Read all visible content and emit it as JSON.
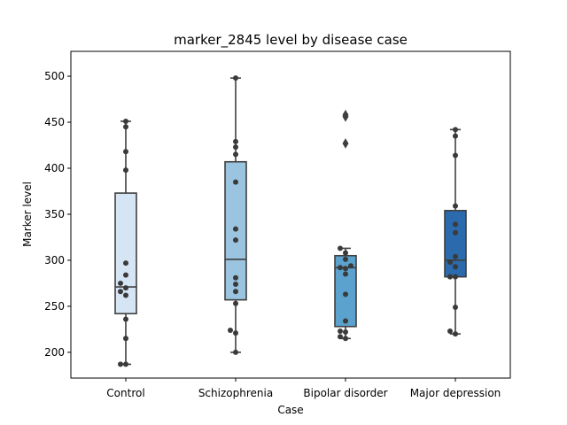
{
  "chart_data": {
    "type": "box",
    "title": "marker_2845 level by disease case",
    "xlabel": "Case",
    "ylabel": "Marker level",
    "ylim": [
      172,
      527
    ],
    "yticks": [
      200,
      250,
      300,
      350,
      400,
      450,
      500
    ],
    "grid": false,
    "categories": [
      "Control",
      "Schizophrenia",
      "Bipolar disorder",
      "Major depression"
    ],
    "colors": [
      "#d6e5f4",
      "#9ac4df",
      "#5ba2cf",
      "#2b6aad"
    ],
    "boxes": [
      {
        "name": "Control",
        "whisker_low": 187,
        "q1": 242,
        "median": 271,
        "q3": 373,
        "whisker_high": 451,
        "outliers": []
      },
      {
        "name": "Schizophrenia",
        "whisker_low": 200,
        "q1": 257,
        "median": 301,
        "q3": 407,
        "whisker_high": 498,
        "outliers": []
      },
      {
        "name": "Bipolar disorder",
        "whisker_low": 215,
        "q1": 228,
        "median": 292,
        "q3": 305,
        "whisker_high": 313,
        "outliers": [
          427,
          456,
          458
        ]
      },
      {
        "name": "Major depression",
        "whisker_low": 220,
        "q1": 282,
        "median": 300,
        "q3": 354,
        "whisker_high": 442,
        "outliers": []
      }
    ],
    "points": [
      {
        "category": "Control",
        "values": [
          187,
          187,
          215,
          236,
          262,
          266,
          270,
          275,
          284,
          297,
          398,
          418,
          445,
          451
        ]
      },
      {
        "category": "Schizophrenia",
        "values": [
          200,
          221,
          224,
          253,
          266,
          274,
          281,
          322,
          334,
          385,
          415,
          423,
          429,
          498
        ]
      },
      {
        "category": "Bipolar disorder",
        "values": [
          215,
          217,
          222,
          223,
          234,
          263,
          285,
          291,
          292,
          294,
          301,
          308,
          313
        ]
      },
      {
        "category": "Major depression",
        "values": [
          220,
          223,
          249,
          282,
          282,
          293,
          298,
          304,
          330,
          339,
          359,
          414,
          435,
          442
        ]
      }
    ]
  }
}
